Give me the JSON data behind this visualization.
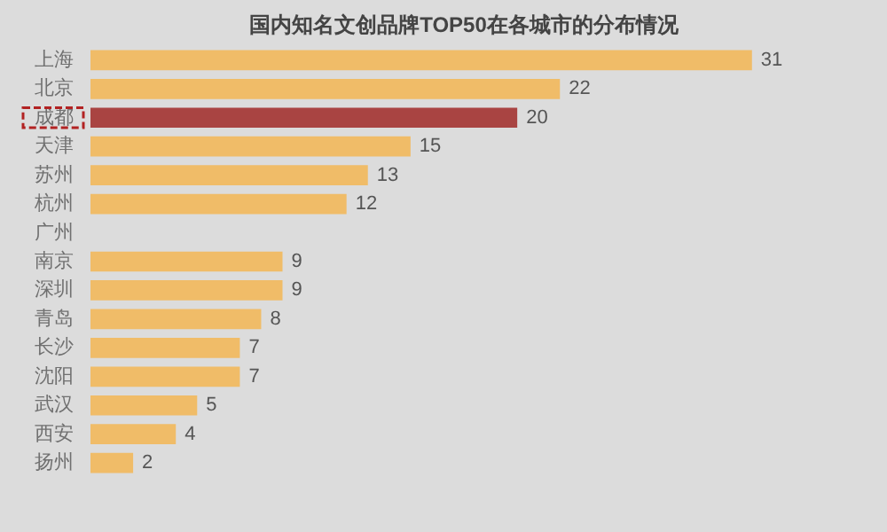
{
  "chart_data": {
    "type": "bar",
    "orientation": "horizontal",
    "title": "国内知名文创品牌TOP50在各城市的分布情况",
    "categories": [
      "上海",
      "北京",
      "成都",
      "天津",
      "苏州",
      "杭州",
      "广州",
      "南京",
      "深圳",
      "青岛",
      "长沙",
      "沈阳",
      "武汉",
      "西安",
      "扬州"
    ],
    "values": [
      31,
      22,
      20,
      15,
      13,
      12,
      null,
      9,
      9,
      8,
      7,
      7,
      5,
      4,
      2
    ],
    "colors": [
      "#f0bc68",
      "#f0bc68",
      "#a94442",
      "#f0bc68",
      "#f0bc68",
      "#f0bc68",
      "#f0bc68",
      "#f0bc68",
      "#f0bc68",
      "#f0bc68",
      "#f0bc68",
      "#f0bc68",
      "#f0bc68",
      "#f0bc68",
      "#f0bc68"
    ],
    "data_labels": true
  }
}
